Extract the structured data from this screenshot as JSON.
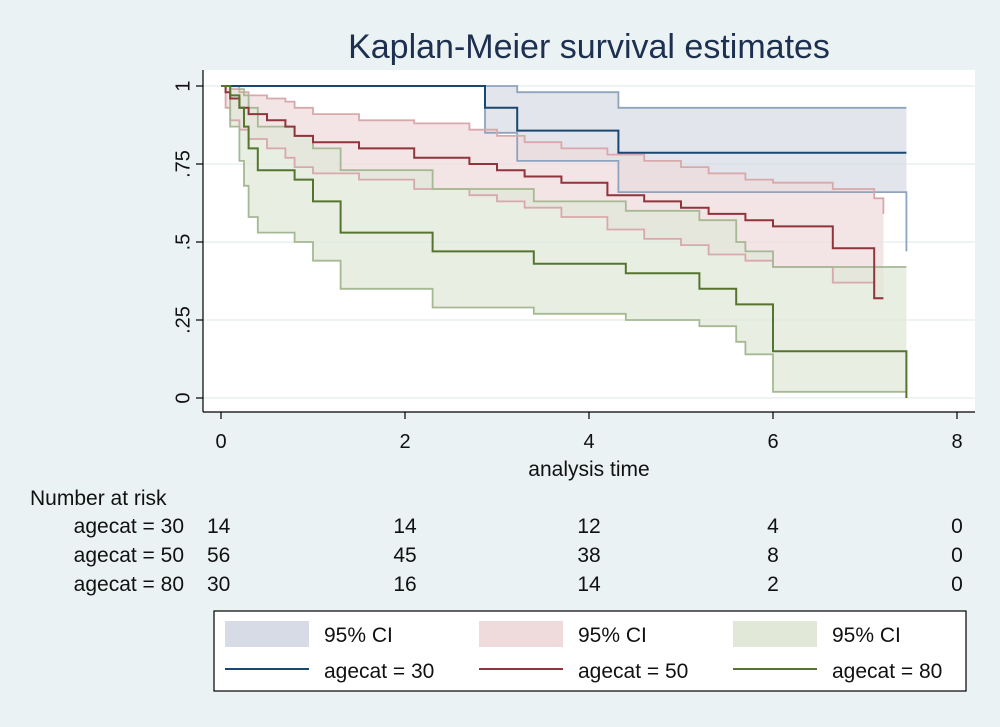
{
  "chart_data": {
    "type": "line",
    "title": "Kaplan-Meier survival estimates",
    "xlabel": "analysis time",
    "ylabel": "",
    "xlim": [
      0,
      8
    ],
    "ylim": [
      0,
      1
    ],
    "x_ticks": [
      0,
      2,
      4,
      6,
      8
    ],
    "x_tick_labels": [
      "0",
      "2",
      "4",
      "6",
      "8"
    ],
    "y_ticks": [
      0,
      0.25,
      0.5,
      0.75,
      1
    ],
    "y_tick_labels": [
      "0",
      ".25",
      ".5",
      ".75",
      "1"
    ],
    "grid": "horizontal",
    "step": true,
    "series": [
      {
        "name": "agecat = 30",
        "ci_label": "95% CI",
        "color": "#1a476f",
        "ci_fill": "#d7dbe5",
        "ci_line": "#8fa3bf",
        "x": [
          0,
          2.87,
          3.22,
          4.32,
          7.45
        ],
        "y": [
          1.0,
          0.93,
          0.857,
          0.786,
          0.786
        ],
        "ci_upper": [
          1.0,
          1.0,
          0.98,
          0.93,
          0.93
        ],
        "ci_lower": [
          1.0,
          0.85,
          0.76,
          0.66,
          0.47
        ]
      },
      {
        "name": "agecat = 50",
        "ci_label": "95% CI",
        "color": "#90353b",
        "ci_fill": "#efdbdc",
        "ci_line": "#d8a8aa",
        "x": [
          0,
          0.05,
          0.1,
          0.2,
          0.3,
          0.5,
          0.7,
          0.8,
          1.0,
          1.5,
          2.1,
          2.7,
          3.0,
          3.3,
          3.7,
          4.2,
          4.6,
          5.0,
          5.3,
          5.7,
          6.0,
          6.65,
          7.1,
          7.2
        ],
        "y": [
          1.0,
          0.98,
          0.96,
          0.93,
          0.91,
          0.89,
          0.87,
          0.84,
          0.82,
          0.8,
          0.77,
          0.75,
          0.73,
          0.71,
          0.69,
          0.65,
          0.63,
          0.61,
          0.59,
          0.57,
          0.55,
          0.48,
          0.32,
          0.32
        ],
        "ci_upper": [
          1.0,
          1.0,
          0.99,
          0.98,
          0.97,
          0.96,
          0.95,
          0.93,
          0.91,
          0.89,
          0.88,
          0.86,
          0.84,
          0.82,
          0.8,
          0.78,
          0.76,
          0.74,
          0.72,
          0.7,
          0.69,
          0.67,
          0.64,
          0.59
        ],
        "ci_lower": [
          1.0,
          0.93,
          0.89,
          0.86,
          0.83,
          0.8,
          0.77,
          0.74,
          0.72,
          0.7,
          0.67,
          0.65,
          0.63,
          0.61,
          0.58,
          0.54,
          0.51,
          0.49,
          0.46,
          0.44,
          0.42,
          0.37,
          0.32,
          0.32
        ]
      },
      {
        "name": "agecat = 80",
        "ci_label": "95% CI",
        "color": "#55752f",
        "ci_fill": "#e1e8d8",
        "ci_line": "#a6b894",
        "x": [
          0,
          0.1,
          0.2,
          0.25,
          0.3,
          0.4,
          0.8,
          1.0,
          1.3,
          2.3,
          3.4,
          4.4,
          5.2,
          5.6,
          5.7,
          6.0,
          7.45
        ],
        "y": [
          1.0,
          0.97,
          0.93,
          0.87,
          0.8,
          0.73,
          0.7,
          0.63,
          0.53,
          0.47,
          0.43,
          0.4,
          0.35,
          0.3,
          0.3,
          0.15,
          0.0
        ],
        "ci_upper": [
          1.0,
          1.0,
          0.99,
          0.97,
          0.93,
          0.87,
          0.84,
          0.8,
          0.73,
          0.67,
          0.63,
          0.6,
          0.57,
          0.5,
          0.47,
          0.42,
          0.42
        ],
        "ci_lower": [
          1.0,
          0.87,
          0.76,
          0.68,
          0.58,
          0.53,
          0.5,
          0.44,
          0.35,
          0.29,
          0.27,
          0.25,
          0.23,
          0.18,
          0.14,
          0.02,
          0.02
        ]
      }
    ],
    "risk_table": {
      "title": "Number at risk",
      "times": [
        0,
        2,
        4,
        6,
        8
      ],
      "rows": [
        {
          "label": "agecat = 30",
          "counts": [
            "14",
            "14",
            "12",
            "4",
            "0"
          ]
        },
        {
          "label": "agecat = 50",
          "counts": [
            "56",
            "45",
            "38",
            "8",
            "0"
          ]
        },
        {
          "label": "agecat = 80",
          "counts": [
            "30",
            "16",
            "14",
            "2",
            "0"
          ]
        }
      ]
    },
    "legend": {
      "position": "bottom",
      "items": [
        {
          "kind": "ci",
          "label": "95% CI",
          "series": 0
        },
        {
          "kind": "ci",
          "label": "95% CI",
          "series": 1
        },
        {
          "kind": "ci",
          "label": "95% CI",
          "series": 2
        },
        {
          "kind": "line",
          "label": "agecat = 30",
          "series": 0
        },
        {
          "kind": "line",
          "label": "agecat = 50",
          "series": 1
        },
        {
          "kind": "line",
          "label": "agecat = 80",
          "series": 2
        }
      ]
    }
  }
}
